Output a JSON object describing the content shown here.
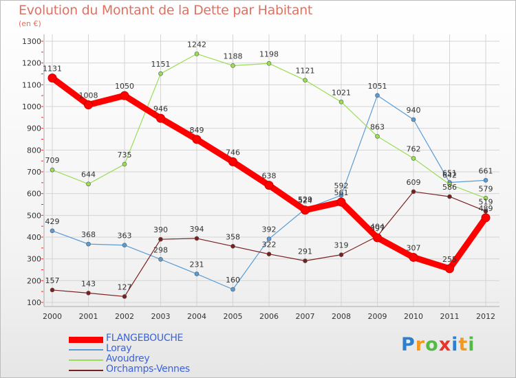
{
  "chart_data": {
    "type": "line",
    "title": "Evolution du Montant de la Dette par Habitant",
    "subtitle": "(en €)",
    "xlabel": "",
    "ylabel": "",
    "x": [
      "2000",
      "2001",
      "2002",
      "2003",
      "2004",
      "2005",
      "2006",
      "2007",
      "2008",
      "2009",
      "2010",
      "2011",
      "2012"
    ],
    "ylim": [
      100,
      1300
    ],
    "yticks": [
      "100",
      "200",
      "300",
      "400",
      "500",
      "600",
      "700",
      "800",
      "900",
      "1000",
      "1100",
      "1200",
      "1300"
    ],
    "grid": true,
    "legend_position": "bottom-left",
    "series": [
      {
        "name": "FLANGEBOUCHE",
        "color": "#ff0000",
        "values": [
          1131,
          1008,
          1050,
          946,
          849,
          746,
          638,
          524,
          561,
          397,
          307,
          255,
          489
        ],
        "labels": [
          "1131",
          "1008",
          "1050",
          "946",
          "849",
          "746",
          "638",
          "524",
          "561",
          "397",
          "307",
          "255",
          "489"
        ]
      },
      {
        "name": "Loray",
        "color": "#5a9bd5",
        "values": [
          429,
          368,
          363,
          298,
          231,
          160,
          392,
          529,
          592,
          1051,
          940,
          651,
          661
        ],
        "labels": [
          "429",
          "368",
          "363",
          "298",
          "231",
          "160",
          "392",
          "529",
          "592",
          "1051",
          "940",
          "651",
          "661"
        ]
      },
      {
        "name": "Avoudrey",
        "color": "#99dd55",
        "values": [
          709,
          644,
          735,
          1151,
          1242,
          1188,
          1198,
          1121,
          1021,
          863,
          762,
          642,
          579
        ],
        "labels": [
          "709",
          "644",
          "735",
          "1151",
          "1242",
          "1188",
          "1198",
          "1121",
          "1021",
          "863",
          "762",
          "642",
          "579"
        ]
      },
      {
        "name": "Orchamps-Vennes",
        "color": "#7a1f1f",
        "values": [
          157,
          143,
          127,
          390,
          394,
          358,
          322,
          291,
          319,
          404,
          609,
          586,
          519
        ],
        "labels": [
          "157",
          "143",
          "127",
          "390",
          "394",
          "358",
          "322",
          "291",
          "319",
          "404",
          "609",
          "586",
          "519"
        ]
      }
    ]
  },
  "brand": {
    "letters": [
      "P",
      "r",
      "o",
      "x",
      "i",
      "t",
      "i"
    ],
    "colors": [
      "#2f7fd0",
      "#f29a1f",
      "#55b947",
      "#e8342a",
      "#2f7fd0",
      "#f29a1f",
      "#55b947"
    ]
  }
}
